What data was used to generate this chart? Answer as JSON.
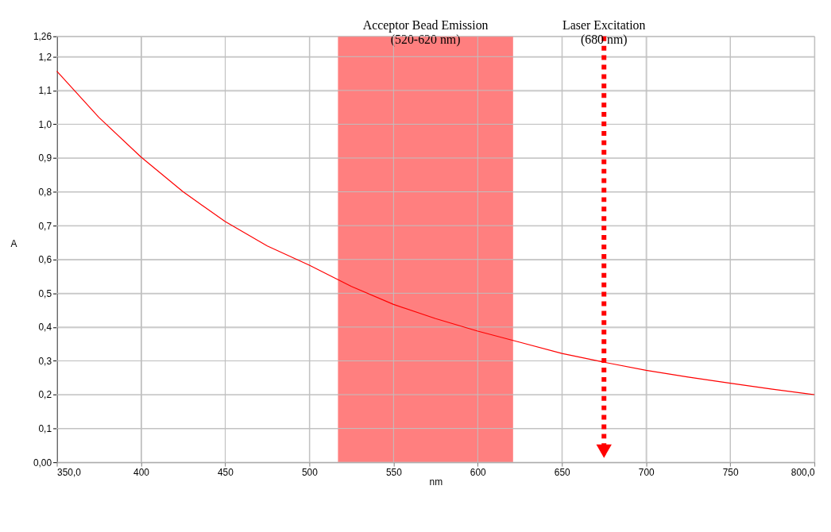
{
  "chart_data": {
    "type": "line",
    "xlabel": "nm",
    "ylabel": "A",
    "x": [
      350,
      375,
      400,
      425,
      450,
      475,
      500,
      525,
      550,
      575,
      600,
      625,
      650,
      675,
      700,
      725,
      750,
      775,
      800
    ],
    "series": [
      {
        "color": "#ff0000",
        "values": [
          1.157,
          1.02,
          0.903,
          0.8,
          0.712,
          0.64,
          0.583,
          0.52,
          0.467,
          0.425,
          0.388,
          0.355,
          0.322,
          0.296,
          0.272,
          0.252,
          0.234,
          0.216,
          0.2
        ]
      }
    ],
    "xlim": [
      350,
      800
    ],
    "xticks": [
      {
        "value": 350,
        "label": "350,0"
      },
      400,
      450,
      500,
      550,
      600,
      650,
      700,
      750,
      {
        "value": 800,
        "label": "800,0"
      }
    ],
    "ylim": [
      0,
      1.26
    ],
    "yticks": [
      {
        "value": 0,
        "label": "0,00"
      },
      {
        "value": 0.1,
        "label": "0,1"
      },
      {
        "value": 0.2,
        "label": "0,2"
      },
      {
        "value": 0.3,
        "label": "0,3"
      },
      {
        "value": 0.4,
        "label": "0,4"
      },
      {
        "value": 0.5,
        "label": "0,5"
      },
      {
        "value": 0.6,
        "label": "0,6"
      },
      {
        "value": 0.7,
        "label": "0,7"
      },
      {
        "value": 0.8,
        "label": "0,8"
      },
      {
        "value": 0.9,
        "label": "0,9"
      },
      {
        "value": 1.0,
        "label": "1,0"
      },
      {
        "value": 1.1,
        "label": "1,1"
      },
      {
        "value": 1.2,
        "label": "1,2"
      },
      {
        "value": 1.26,
        "label": "1,26"
      }
    ],
    "bands": [
      {
        "axis": "x",
        "from": 517,
        "to": 621,
        "label": "Acceptor Bead Emission\n(520-620 nm)",
        "color": "#ff7f7f"
      }
    ],
    "ref_lines": [
      {
        "axis": "x",
        "value": 675,
        "label": "Laser Excitation\n(680 nm)",
        "color": "#ff0000",
        "line_style": "dotted"
      }
    ],
    "grid": true,
    "marker": "none",
    "line_style": "solid"
  }
}
